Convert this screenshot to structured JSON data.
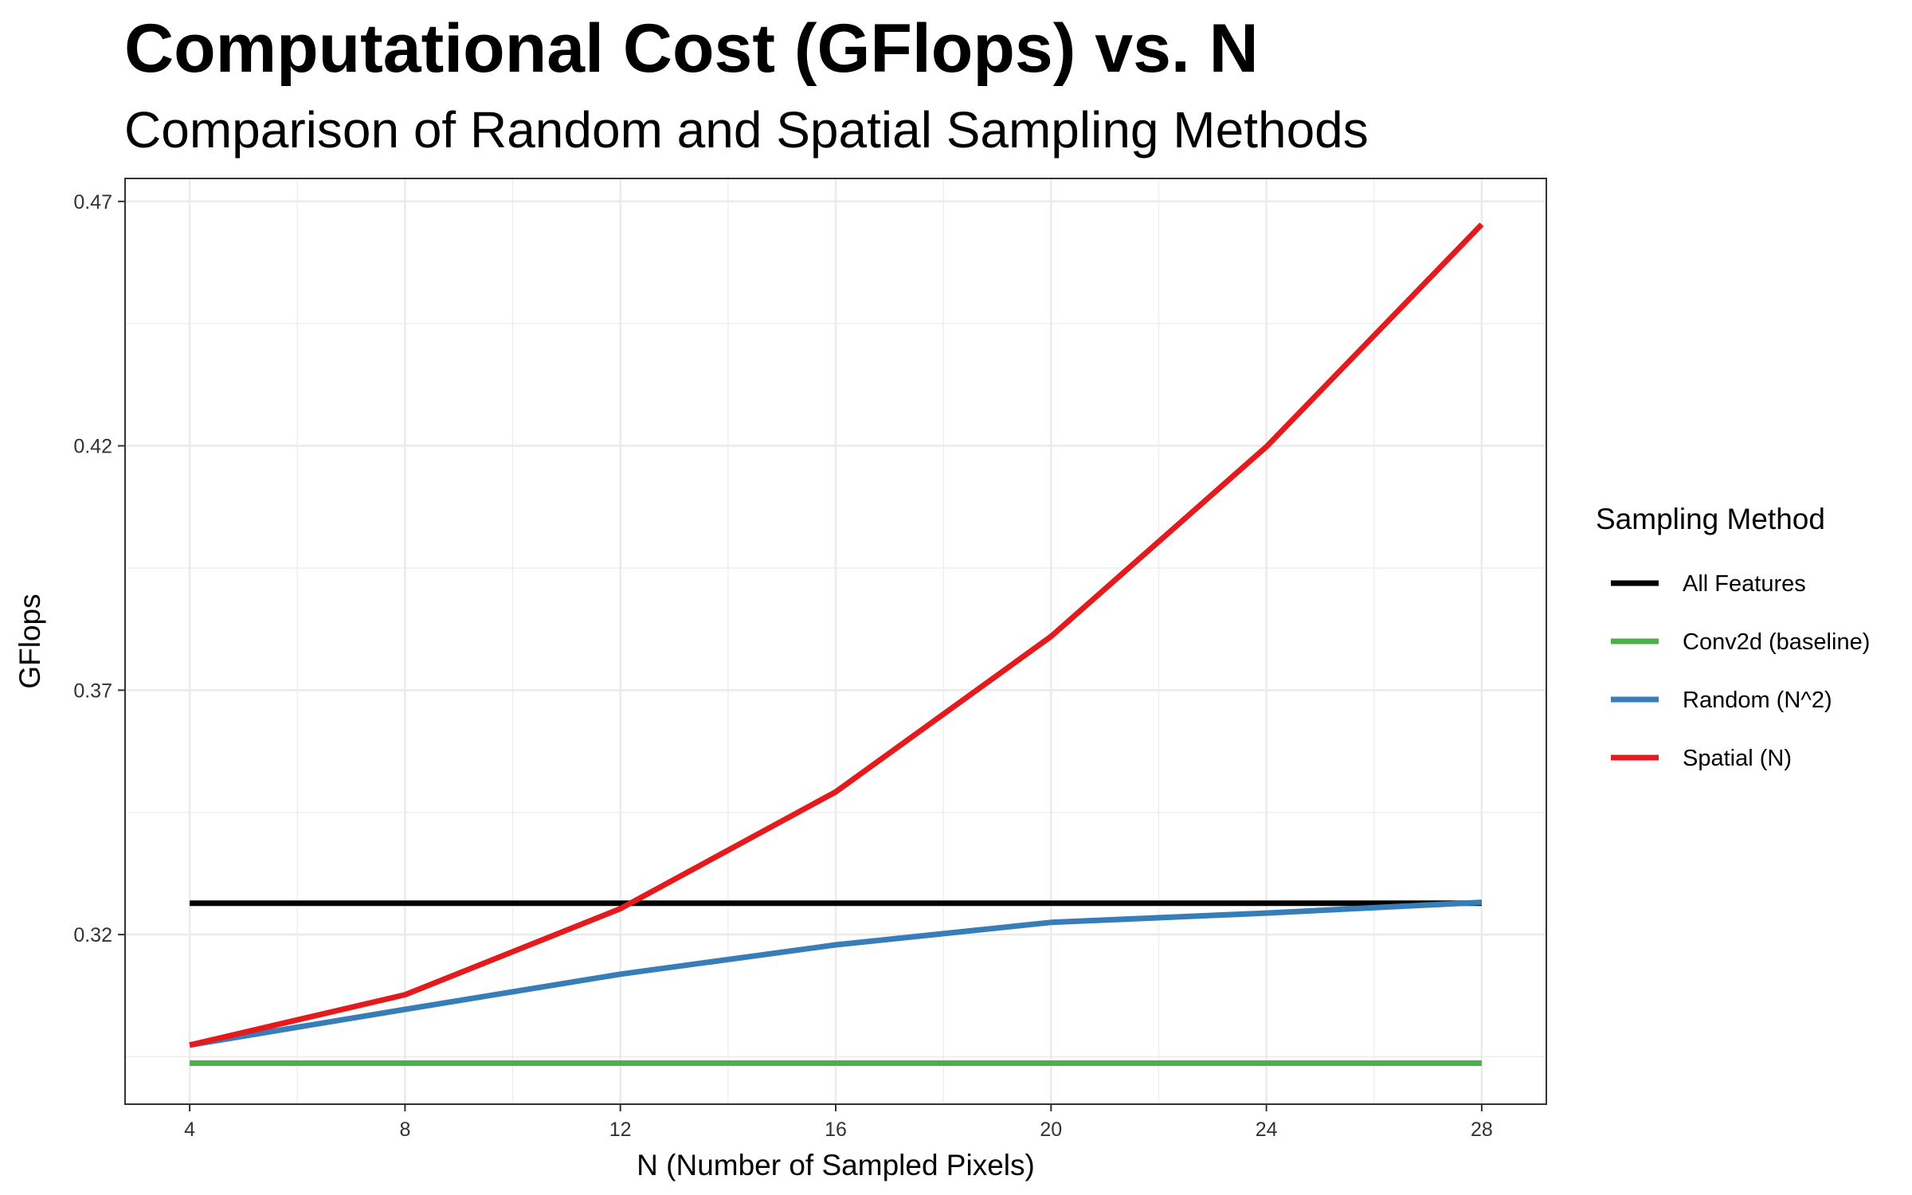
{
  "chart_data": {
    "type": "line",
    "title": "Computational Cost (GFlops) vs. N",
    "subtitle": "Comparison of Random and Spatial Sampling Methods",
    "xlabel": "N (Number of Sampled Pixels)",
    "ylabel": "GFlops",
    "x": [
      4,
      8,
      12,
      16,
      20,
      24,
      28
    ],
    "xticks": [
      "4",
      "8",
      "12",
      "16",
      "20",
      "24",
      "28"
    ],
    "xlim": [
      2.8,
      29.2
    ],
    "yticks": [
      "0.32",
      "0.37",
      "0.42",
      "0.47"
    ],
    "ylim": [
      0.2853,
      0.4747
    ],
    "grid": true,
    "legend": {
      "title": "Sampling Method",
      "position": "right"
    },
    "series": [
      {
        "name": "All Features",
        "color": "#000000",
        "values": [
          0.3264,
          0.3264,
          0.3264,
          0.3264,
          0.3264,
          0.3264,
          0.3264
        ]
      },
      {
        "name": "Conv2d (baseline)",
        "color": "#4DAF4A",
        "values": [
          0.2937,
          0.2937,
          0.2937,
          0.2937,
          0.2937,
          0.2937,
          0.2937
        ]
      },
      {
        "name": "Random (N^2)",
        "color": "#377EB8",
        "values": [
          0.2974,
          0.3047,
          0.3119,
          0.3179,
          0.3225,
          0.3244,
          0.3266
        ]
      },
      {
        "name": "Spatial (N)",
        "color": "#E41A1C",
        "values": [
          0.2974,
          0.3077,
          0.3253,
          0.3492,
          0.381,
          0.4198,
          0.4653
        ]
      }
    ]
  }
}
